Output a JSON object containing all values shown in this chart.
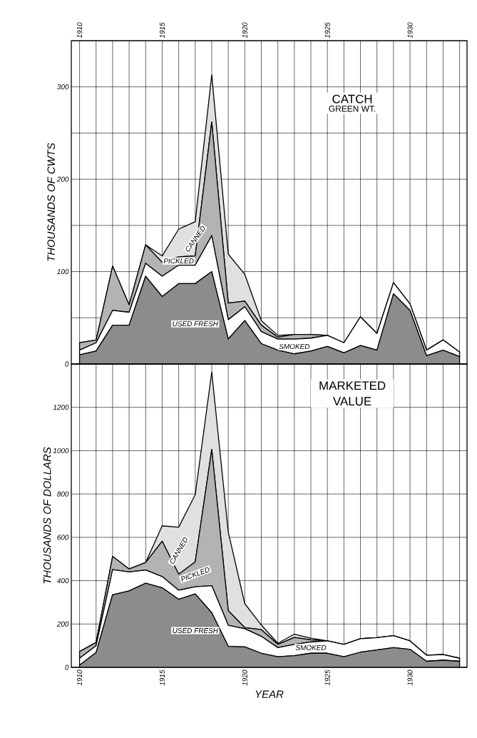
{
  "chart_data": [
    {
      "type": "area",
      "title": "CATCH",
      "subtitle": "GREEN WT.",
      "ylabel": "THOUSANDS OF CWTS",
      "stacked": true,
      "grid": true,
      "x": [
        1910,
        1911,
        1912,
        1913,
        1914,
        1915,
        1916,
        1917,
        1918,
        1919,
        1920,
        1921,
        1922,
        1923,
        1924,
        1925,
        1926,
        1927,
        1928,
        1929,
        1930,
        1931,
        1932,
        1933
      ],
      "xlim": [
        1909.5,
        1933.45
      ],
      "xticks": [
        1910,
        {
          "value": 1911,
          "label": null
        },
        {
          "value": 1912,
          "label": null
        },
        {
          "value": 1913,
          "label": null
        },
        {
          "value": 1914,
          "label": null
        },
        1915,
        {
          "value": 1916,
          "label": null
        },
        {
          "value": 1917,
          "label": null
        },
        {
          "value": 1918,
          "label": null
        },
        {
          "value": 1919,
          "label": null
        },
        1920,
        {
          "value": 1921,
          "label": null
        },
        {
          "value": 1922,
          "label": null
        },
        {
          "value": 1923,
          "label": null
        },
        {
          "value": 1924,
          "label": null
        },
        1925,
        {
          "value": 1926,
          "label": null
        },
        {
          "value": 1927,
          "label": null
        },
        {
          "value": 1928,
          "label": null
        },
        {
          "value": 1929,
          "label": null
        },
        1930,
        {
          "value": 1931,
          "label": null
        },
        {
          "value": 1932,
          "label": null
        },
        {
          "value": 1933,
          "label": null
        }
      ],
      "ylim": [
        0,
        350
      ],
      "yticks": [
        0,
        {
          "value": 50,
          "label": null
        },
        100,
        {
          "value": 150,
          "label": null
        },
        200,
        {
          "value": 250,
          "label": null
        },
        300
      ],
      "series": [
        {
          "name": "USED FRESH",
          "color": "#8c8c8c",
          "values": [
            10,
            14,
            42,
            42,
            95,
            73,
            87,
            87,
            100,
            27,
            47,
            22,
            15,
            11,
            14,
            19,
            12,
            20,
            15,
            76,
            58,
            9,
            15,
            8
          ]
        },
        {
          "name": "SMOKED",
          "color": "#ffffff",
          "values": [
            5,
            9,
            16,
            14,
            14,
            22,
            20,
            20,
            39,
            21,
            15,
            13,
            12,
            16,
            14,
            12,
            11,
            31,
            18,
            12,
            7,
            6,
            11,
            5
          ]
        },
        {
          "name": "PICKLED",
          "color": "#b3b3b3",
          "values": [
            8,
            3,
            48,
            8,
            20,
            15,
            9,
            10,
            123,
            18,
            6,
            7,
            2,
            5,
            4,
            0,
            0,
            0,
            0,
            0,
            0,
            0,
            0,
            0
          ]
        },
        {
          "name": "CANNED",
          "color": "#e0e0e0",
          "values": [
            0,
            0,
            0,
            0,
            0,
            7,
            30,
            37,
            51,
            53,
            29,
            5,
            2,
            0,
            0,
            0,
            0,
            0,
            0,
            0,
            0,
            0,
            0,
            0
          ]
        }
      ]
    },
    {
      "type": "area",
      "title": "MARKETED VALUE",
      "xlabel": "YEAR",
      "ylabel": "THOUSANDS OF DOLLARS",
      "stacked": true,
      "grid": true,
      "x": [
        1910,
        1911,
        1912,
        1913,
        1914,
        1915,
        1916,
        1917,
        1918,
        1919,
        1920,
        1921,
        1922,
        1923,
        1924,
        1925,
        1926,
        1927,
        1928,
        1929,
        1930,
        1931,
        1932,
        1933
      ],
      "xlim": [
        1909.5,
        1933.45
      ],
      "xticks": [
        1910,
        {
          "value": 1911,
          "label": null
        },
        {
          "value": 1912,
          "label": null
        },
        {
          "value": 1913,
          "label": null
        },
        {
          "value": 1914,
          "label": null
        },
        1915,
        {
          "value": 1916,
          "label": null
        },
        {
          "value": 1917,
          "label": null
        },
        {
          "value": 1918,
          "label": null
        },
        {
          "value": 1919,
          "label": null
        },
        1920,
        {
          "value": 1921,
          "label": null
        },
        {
          "value": 1922,
          "label": null
        },
        {
          "value": 1923,
          "label": null
        },
        {
          "value": 1924,
          "label": null
        },
        1925,
        {
          "value": 1926,
          "label": null
        },
        {
          "value": 1927,
          "label": null
        },
        {
          "value": 1928,
          "label": null
        },
        {
          "value": 1929,
          "label": null
        },
        1930,
        {
          "value": 1931,
          "label": null
        },
        {
          "value": 1932,
          "label": null
        },
        {
          "value": 1933,
          "label": null
        }
      ],
      "ylim": [
        0,
        1400
      ],
      "yticks": [
        0,
        200,
        400,
        600,
        800,
        1000,
        1200
      ],
      "series": [
        {
          "name": "USED FRESH",
          "color": "#8c8c8c",
          "values": [
            10,
            68,
            335,
            353,
            388,
            367,
            314,
            339,
            252,
            97,
            94,
            65,
            49,
            54,
            65,
            65,
            49,
            70,
            80,
            91,
            83,
            28,
            33,
            28
          ]
        },
        {
          "name": "SMOKED",
          "color": "#ffffff",
          "values": [
            32,
            32,
            116,
            87,
            61,
            52,
            42,
            33,
            125,
            97,
            84,
            78,
            42,
            52,
            52,
            57,
            57,
            62,
            57,
            55,
            39,
            28,
            26,
            14
          ]
        },
        {
          "name": "PICKLED",
          "color": "#b3b3b3",
          "values": [
            31,
            15,
            61,
            14,
            35,
            163,
            74,
            115,
            629,
            68,
            5,
            31,
            15,
            32,
            10,
            0,
            0,
            0,
            0,
            0,
            0,
            0,
            0,
            0
          ]
        },
        {
          "name": "CANNED",
          "color": "#e0e0e0",
          "values": [
            0,
            0,
            0,
            0,
            0,
            71,
            217,
            310,
            357,
            362,
            111,
            21,
            5,
            15,
            8,
            0,
            0,
            0,
            0,
            0,
            0,
            0,
            0,
            0
          ]
        }
      ]
    }
  ]
}
